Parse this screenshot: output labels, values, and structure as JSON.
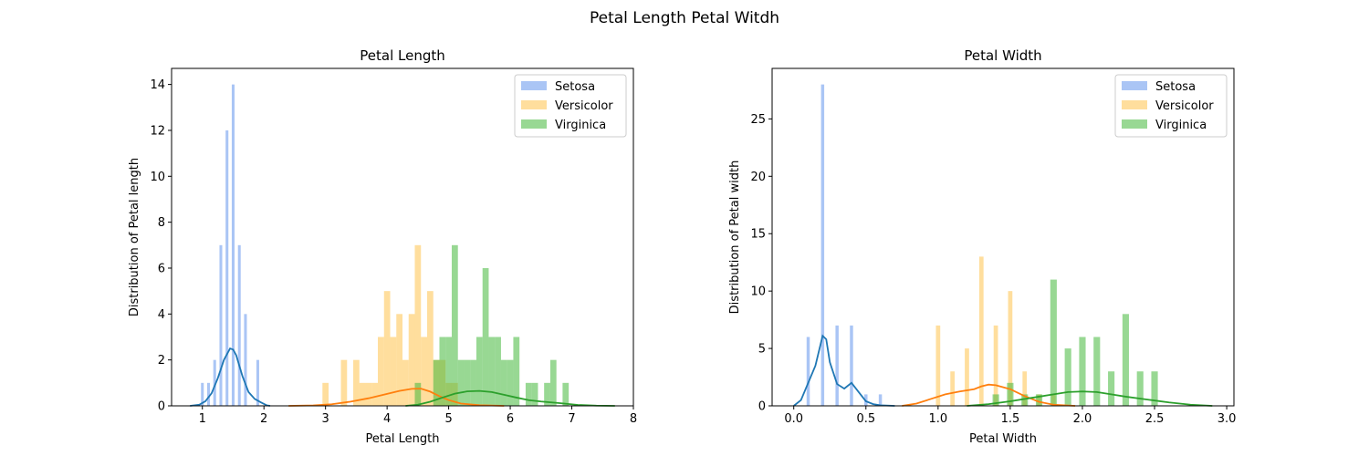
{
  "figure_title": "Petal Length Petal Witdh",
  "colors": {
    "setosa_bar": "#6495ed",
    "versicolor_bar": "#ffc34d",
    "virginica_bar": "#44b83a",
    "setosa_kde": "#1f77b4",
    "versicolor_kde": "#ff7f0e",
    "virginica_kde": "#2ca02c"
  },
  "chart_data": [
    {
      "type": "bar",
      "title": "Petal Length",
      "xlabel": "Petal Length",
      "ylabel": "Distribution of Petal length",
      "xlim": [
        0.5,
        8.0
      ],
      "ylim": [
        0,
        14.7
      ],
      "xticks": [
        1,
        2,
        3,
        4,
        5,
        6,
        7,
        8
      ],
      "xtick_labels": [
        "1",
        "2",
        "3",
        "4",
        "5",
        "6",
        "7",
        "8"
      ],
      "yticks": [
        0,
        2,
        4,
        6,
        8,
        10,
        12,
        14
      ],
      "ytick_labels": [
        "0",
        "2",
        "4",
        "6",
        "8",
        "10",
        "12",
        "14"
      ],
      "legend": [
        "Setosa",
        "Versicolor",
        "Virginica"
      ],
      "legend_position": "top-right",
      "series": [
        {
          "name": "Setosa",
          "color_key": "setosa_bar",
          "bar_width": 0.045,
          "bars": [
            [
              1.0,
              1
            ],
            [
              1.1,
              1
            ],
            [
              1.2,
              2
            ],
            [
              1.3,
              7
            ],
            [
              1.4,
              12
            ],
            [
              1.5,
              14
            ],
            [
              1.6,
              7
            ],
            [
              1.7,
              4
            ],
            [
              1.9,
              2
            ]
          ]
        },
        {
          "name": "Versicolor",
          "color_key": "versicolor_bar",
          "bar_width": 0.1,
          "bars": [
            [
              3.0,
              1
            ],
            [
              3.3,
              2
            ],
            [
              3.5,
              2
            ],
            [
              3.6,
              1
            ],
            [
              3.7,
              1
            ],
            [
              3.8,
              1
            ],
            [
              3.9,
              3
            ],
            [
              4.0,
              5
            ],
            [
              4.1,
              3
            ],
            [
              4.2,
              4
            ],
            [
              4.3,
              2
            ],
            [
              4.4,
              4
            ],
            [
              4.5,
              7
            ],
            [
              4.6,
              3
            ],
            [
              4.7,
              5
            ],
            [
              4.8,
              2
            ],
            [
              4.9,
              2
            ],
            [
              5.0,
              1
            ],
            [
              5.1,
              1
            ]
          ]
        },
        {
          "name": "Virginica",
          "color_key": "virginica_bar",
          "bar_width": 0.1,
          "bars": [
            [
              4.5,
              1
            ],
            [
              4.8,
              2
            ],
            [
              4.9,
              3
            ],
            [
              5.0,
              3
            ],
            [
              5.1,
              7
            ],
            [
              5.2,
              2
            ],
            [
              5.3,
              2
            ],
            [
              5.4,
              2
            ],
            [
              5.5,
              3
            ],
            [
              5.6,
              6
            ],
            [
              5.7,
              3
            ],
            [
              5.8,
              3
            ],
            [
              5.9,
              2
            ],
            [
              6.0,
              2
            ],
            [
              6.1,
              3
            ],
            [
              6.3,
              1
            ],
            [
              6.4,
              1
            ],
            [
              6.6,
              1
            ],
            [
              6.7,
              2
            ],
            [
              6.9,
              1
            ]
          ]
        }
      ],
      "kde": [
        {
          "name": "Setosa",
          "color_key": "setosa_kde",
          "points": [
            [
              0.8,
              0
            ],
            [
              0.95,
              0.05
            ],
            [
              1.05,
              0.2
            ],
            [
              1.15,
              0.55
            ],
            [
              1.25,
              1.2
            ],
            [
              1.35,
              2.0
            ],
            [
              1.45,
              2.5
            ],
            [
              1.5,
              2.45
            ],
            [
              1.55,
              2.2
            ],
            [
              1.65,
              1.3
            ],
            [
              1.75,
              0.6
            ],
            [
              1.85,
              0.3
            ],
            [
              1.95,
              0.15
            ],
            [
              2.05,
              0.02
            ],
            [
              2.1,
              0
            ]
          ]
        },
        {
          "name": "Versicolor",
          "color_key": "versicolor_kde",
          "points": [
            [
              2.4,
              0
            ],
            [
              2.8,
              0.02
            ],
            [
              3.1,
              0.07
            ],
            [
              3.4,
              0.18
            ],
            [
              3.7,
              0.33
            ],
            [
              4.0,
              0.52
            ],
            [
              4.2,
              0.65
            ],
            [
              4.4,
              0.74
            ],
            [
              4.55,
              0.75
            ],
            [
              4.7,
              0.62
            ],
            [
              4.85,
              0.42
            ],
            [
              5.0,
              0.25
            ],
            [
              5.2,
              0.1
            ],
            [
              5.5,
              0.03
            ],
            [
              5.9,
              0
            ]
          ]
        },
        {
          "name": "Virginica",
          "color_key": "virginica_kde",
          "points": [
            [
              4.3,
              0
            ],
            [
              4.5,
              0.05
            ],
            [
              4.7,
              0.18
            ],
            [
              4.9,
              0.36
            ],
            [
              5.1,
              0.53
            ],
            [
              5.3,
              0.63
            ],
            [
              5.5,
              0.65
            ],
            [
              5.7,
              0.6
            ],
            [
              5.9,
              0.48
            ],
            [
              6.1,
              0.36
            ],
            [
              6.3,
              0.25
            ],
            [
              6.5,
              0.19
            ],
            [
              6.8,
              0.12
            ],
            [
              7.1,
              0.04
            ],
            [
              7.4,
              0.01
            ],
            [
              7.7,
              0
            ]
          ]
        }
      ]
    },
    {
      "type": "bar",
      "title": "Petal Width",
      "xlabel": "Petal Width",
      "ylabel": "Distribution of Petal width",
      "xlim": [
        -0.15,
        3.05
      ],
      "ylim": [
        0,
        29.4
      ],
      "xticks": [
        0.0,
        0.5,
        1.0,
        1.5,
        2.0,
        2.5,
        3.0
      ],
      "xtick_labels": [
        "0.0",
        "0.5",
        "1.0",
        "1.5",
        "2.0",
        "2.5",
        "3.0"
      ],
      "yticks": [
        0,
        5,
        10,
        15,
        20,
        25
      ],
      "ytick_labels": [
        "0",
        "5",
        "10",
        "15",
        "20",
        "25"
      ],
      "legend": [
        "Setosa",
        "Versicolor",
        "Virginica"
      ],
      "legend_position": "top-right",
      "series": [
        {
          "name": "Setosa",
          "color_key": "setosa_bar",
          "bar_width": 0.022,
          "bars": [
            [
              0.1,
              6
            ],
            [
              0.2,
              28
            ],
            [
              0.3,
              7
            ],
            [
              0.4,
              7
            ],
            [
              0.5,
              1
            ],
            [
              0.6,
              1
            ]
          ]
        },
        {
          "name": "Versicolor",
          "color_key": "versicolor_bar",
          "bar_width": 0.03,
          "bars": [
            [
              1.0,
              7
            ],
            [
              1.1,
              3
            ],
            [
              1.2,
              5
            ],
            [
              1.3,
              13
            ],
            [
              1.4,
              7
            ],
            [
              1.5,
              10
            ],
            [
              1.6,
              3
            ],
            [
              1.7,
              1
            ],
            [
              1.8,
              1
            ]
          ]
        },
        {
          "name": "Virginica",
          "color_key": "virginica_bar",
          "bar_width": 0.045,
          "bars": [
            [
              1.4,
              1
            ],
            [
              1.5,
              2
            ],
            [
              1.6,
              1
            ],
            [
              1.7,
              1
            ],
            [
              1.8,
              11
            ],
            [
              1.9,
              5
            ],
            [
              2.0,
              6
            ],
            [
              2.1,
              6
            ],
            [
              2.2,
              3
            ],
            [
              2.3,
              8
            ],
            [
              2.4,
              3
            ],
            [
              2.5,
              3
            ]
          ]
        }
      ],
      "kde": [
        {
          "name": "Setosa",
          "color_key": "setosa_kde",
          "points": [
            [
              0.0,
              0
            ],
            [
              0.05,
              0.5
            ],
            [
              0.1,
              2.0
            ],
            [
              0.15,
              3.5
            ],
            [
              0.2,
              6.1
            ],
            [
              0.225,
              5.8
            ],
            [
              0.25,
              3.8
            ],
            [
              0.3,
              1.9
            ],
            [
              0.35,
              1.5
            ],
            [
              0.4,
              2.0
            ],
            [
              0.45,
              1.2
            ],
            [
              0.5,
              0.4
            ],
            [
              0.55,
              0.15
            ],
            [
              0.6,
              0.05
            ],
            [
              0.7,
              0
            ]
          ]
        },
        {
          "name": "Versicolor",
          "color_key": "versicolor_kde",
          "points": [
            [
              0.75,
              0
            ],
            [
              0.85,
              0.2
            ],
            [
              0.95,
              0.6
            ],
            [
              1.05,
              1.0
            ],
            [
              1.15,
              1.25
            ],
            [
              1.25,
              1.45
            ],
            [
              1.3,
              1.7
            ],
            [
              1.35,
              1.85
            ],
            [
              1.4,
              1.8
            ],
            [
              1.5,
              1.45
            ],
            [
              1.6,
              0.85
            ],
            [
              1.7,
              0.35
            ],
            [
              1.8,
              0.1
            ],
            [
              1.95,
              0
            ]
          ]
        },
        {
          "name": "Virginica",
          "color_key": "virginica_kde",
          "points": [
            [
              1.2,
              0
            ],
            [
              1.35,
              0.15
            ],
            [
              1.5,
              0.4
            ],
            [
              1.65,
              0.7
            ],
            [
              1.8,
              1.0
            ],
            [
              1.9,
              1.2
            ],
            [
              2.0,
              1.25
            ],
            [
              2.1,
              1.2
            ],
            [
              2.2,
              1.0
            ],
            [
              2.3,
              0.8
            ],
            [
              2.45,
              0.55
            ],
            [
              2.6,
              0.3
            ],
            [
              2.75,
              0.1
            ],
            [
              2.9,
              0
            ]
          ]
        }
      ]
    }
  ]
}
